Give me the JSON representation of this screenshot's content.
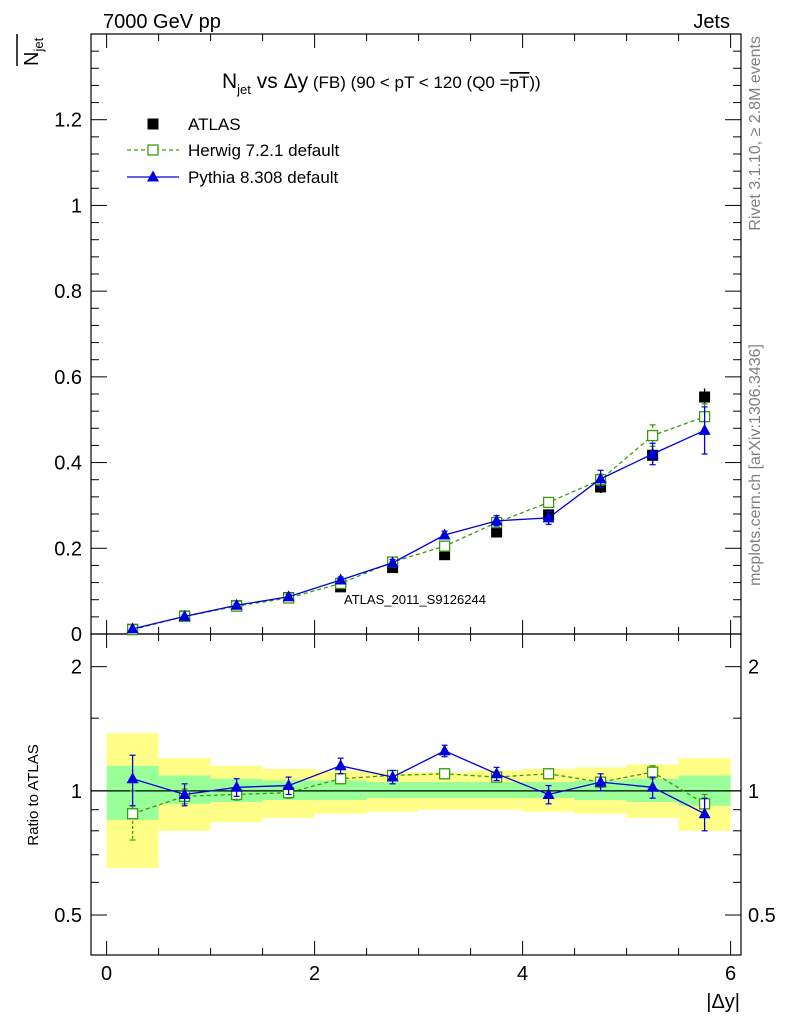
{
  "header": {
    "left": "7000 GeV pp",
    "right": "Jets"
  },
  "side_text": {
    "rivet": "Rivet 3.1.10, ≥ 2.8M events",
    "mcplots": "mcplots.cern.ch [arXiv:1306.3436]"
  },
  "analysis_label": "ATLAS_2011_S9126244",
  "chart_data": [
    {
      "type": "scatter",
      "title": "N_jet vs Δy (FB) (90 < pT < 120 (Q0 = pT))",
      "title_parts": {
        "n": "N",
        "sub": "jet",
        "vs": " vs ",
        "delta_y": "Δy",
        "rest": " (FB) (90 < pT < 120 (Q0 =",
        "pt": "pT",
        "close": "))"
      },
      "ylabel": "N_jet",
      "ylabel_parts": {
        "n": "N",
        "sub": "jet"
      },
      "xlim": [
        -0.15,
        6.1
      ],
      "ylim": [
        0,
        1.4
      ],
      "yticks": [
        0,
        0.2,
        0.4,
        0.6,
        0.8,
        1,
        1.2
      ],
      "ytick_labels": [
        "0",
        "0.2",
        "0.4",
        "0.6",
        "0.8",
        "1",
        "1.2"
      ],
      "legend_position": "top-left",
      "x": [
        0.25,
        0.75,
        1.25,
        1.75,
        2.25,
        2.75,
        3.25,
        3.75,
        4.25,
        4.75,
        5.25,
        5.75
      ],
      "series": [
        {
          "name": "ATLAS",
          "color": "#000000",
          "marker": "filled-square",
          "values": [
            0.011,
            0.042,
            0.066,
            0.085,
            0.11,
            0.155,
            0.185,
            0.238,
            0.278,
            0.343,
            0.417,
            0.553
          ],
          "errors": [
            0.002,
            0.003,
            0.004,
            0.005,
            0.007,
            0.008,
            0.009,
            0.01,
            0.012,
            0.014,
            0.018,
            0.02
          ]
        },
        {
          "name": "Herwig 7.2.1 default",
          "color": "#3a9a0e",
          "marker": "open-square",
          "line": "dashed",
          "values": [
            0.01,
            0.041,
            0.065,
            0.084,
            0.118,
            0.168,
            0.205,
            0.26,
            0.307,
            0.36,
            0.463,
            0.507
          ],
          "errors": [
            0.001,
            0.003,
            0.004,
            0.004,
            0.006,
            0.007,
            0.008,
            0.01,
            0.01,
            0.013,
            0.025,
            0.03
          ]
        },
        {
          "name": "Pythia 8.308 default",
          "color": "#0000dd",
          "marker": "filled-triangle",
          "line": "solid",
          "values": [
            0.012,
            0.041,
            0.067,
            0.087,
            0.126,
            0.166,
            0.231,
            0.264,
            0.271,
            0.362,
            0.42,
            0.475
          ],
          "errors": [
            0.002,
            0.003,
            0.004,
            0.005,
            0.007,
            0.008,
            0.009,
            0.012,
            0.015,
            0.02,
            0.025,
            0.055
          ]
        }
      ]
    },
    {
      "type": "scatter",
      "ylabel": "Ratio to ATLAS",
      "xlabel": "|Δy|",
      "y_scale": "log",
      "xlim": [
        -0.15,
        6.1
      ],
      "ylim": [
        0.4,
        2.4
      ],
      "xticks": [
        0,
        2,
        4,
        6
      ],
      "xtick_labels": [
        "0",
        "2",
        "4",
        "6"
      ],
      "yticks": [
        0.5,
        1,
        2
      ],
      "ytick_labels": [
        "0.5",
        "1",
        "2"
      ],
      "x": [
        0.25,
        0.75,
        1.25,
        1.75,
        2.25,
        2.75,
        3.25,
        3.75,
        4.25,
        4.75,
        5.25,
        5.75
      ],
      "bin_edges": [
        0,
        0.5,
        1,
        1.5,
        2,
        2.5,
        3,
        3.5,
        4,
        4.5,
        5,
        5.5,
        6
      ],
      "band_inner": {
        "color": "#99ff99",
        "lo": [
          0.85,
          0.93,
          0.94,
          0.95,
          0.95,
          0.96,
          0.96,
          0.96,
          0.96,
          0.95,
          0.94,
          0.92
        ],
        "hi": [
          1.15,
          1.09,
          1.07,
          1.06,
          1.06,
          1.05,
          1.05,
          1.05,
          1.05,
          1.06,
          1.07,
          1.09
        ]
      },
      "band_outer": {
        "color": "#ffff88",
        "lo": [
          0.65,
          0.8,
          0.84,
          0.86,
          0.88,
          0.89,
          0.9,
          0.9,
          0.89,
          0.88,
          0.86,
          0.8
        ],
        "hi": [
          1.38,
          1.2,
          1.15,
          1.13,
          1.12,
          1.11,
          1.11,
          1.12,
          1.13,
          1.14,
          1.16,
          1.2
        ]
      },
      "series": [
        {
          "name": "Herwig 7.2.1 default",
          "color": "#3a9a0e",
          "marker": "open-square",
          "line": "dashed",
          "values": [
            0.88,
            0.97,
            0.98,
            0.99,
            1.07,
            1.09,
            1.1,
            1.08,
            1.1,
            1.05,
            1.11,
            0.93
          ],
          "errors": [
            0.12,
            0.04,
            0.03,
            0.03,
            0.03,
            0.03,
            0.03,
            0.03,
            0.03,
            0.03,
            0.04,
            0.05
          ]
        },
        {
          "name": "Pythia 8.308 default",
          "color": "#0000dd",
          "marker": "filled-triangle",
          "line": "solid",
          "values": [
            1.07,
            0.98,
            1.02,
            1.03,
            1.15,
            1.08,
            1.25,
            1.1,
            0.98,
            1.05,
            1.02,
            0.88
          ],
          "errors": [
            0.15,
            0.06,
            0.05,
            0.05,
            0.05,
            0.04,
            0.04,
            0.04,
            0.05,
            0.05,
            0.06,
            0.08
          ]
        }
      ]
    }
  ]
}
